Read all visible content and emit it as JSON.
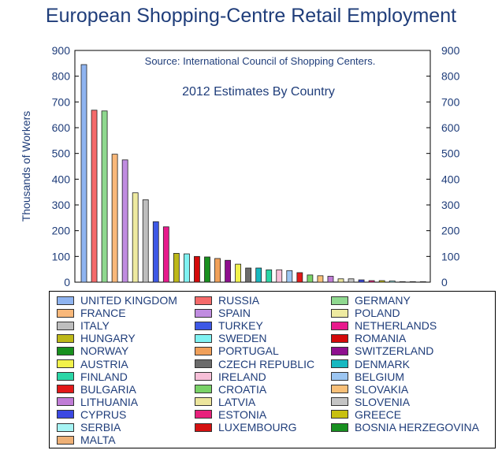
{
  "title": "European Shopping-Centre Retail Employment",
  "chart_data": {
    "type": "bar",
    "source_note": "Source: International Council of Shopping Centers.",
    "subtitle": "2012 Estimates By Country",
    "ylabel": "Thousands of Workers",
    "ylim": [
      0,
      900
    ],
    "yticks": [
      0,
      100,
      200,
      300,
      400,
      500,
      600,
      700,
      800,
      900
    ],
    "grid": false,
    "legend_position": "bottom",
    "categories": [
      "UNITED KINGDOM",
      "RUSSIA",
      "GERMANY",
      "FRANCE",
      "SPAIN",
      "POLAND",
      "ITALY",
      "TURKEY",
      "NETHERLANDS",
      "HUNGARY",
      "SWEDEN",
      "ROMANIA",
      "NORWAY",
      "PORTUGAL",
      "SWITZERLAND",
      "AUSTRIA",
      "CZECH REPUBLIC",
      "DENMARK",
      "FINLAND",
      "IRELAND",
      "BELGIUM",
      "BULGARIA",
      "CROATIA",
      "SLOVAKIA",
      "LITHUANIA",
      "LATVIA",
      "SLOVENIA",
      "CYPRUS",
      "ESTONIA",
      "GREECE",
      "SERBIA",
      "LUXEMBOURG",
      "BOSNIA HERZEGOVINA",
      "MALTA"
    ],
    "values": [
      845,
      668,
      665,
      497,
      475,
      347,
      320,
      235,
      215,
      112,
      110,
      100,
      98,
      92,
      85,
      70,
      55,
      55,
      48,
      48,
      45,
      37,
      28,
      25,
      23,
      13,
      13,
      9,
      6,
      6,
      5,
      2,
      2,
      1
    ],
    "colors": [
      "#8fb4f0",
      "#f56a6a",
      "#8fd88f",
      "#f9b87a",
      "#c08ce0",
      "#eeeaa0",
      "#bebebe",
      "#3d58e6",
      "#e8198c",
      "#bdb818",
      "#7ff2f2",
      "#d40a0a",
      "#18901e",
      "#f0a05a",
      "#8e0f8e",
      "#f2f24a",
      "#6b6b6b",
      "#17b8c0",
      "#2ad6a6",
      "#f7bfd8",
      "#9cc6f2",
      "#e21818",
      "#79d267",
      "#f9c078",
      "#c07cd6",
      "#ece59c",
      "#c4c4c4",
      "#3b48e2",
      "#e8207c",
      "#c8c010",
      "#a6f4f4",
      "#d41010",
      "#189020",
      "#eeb076"
    ]
  }
}
